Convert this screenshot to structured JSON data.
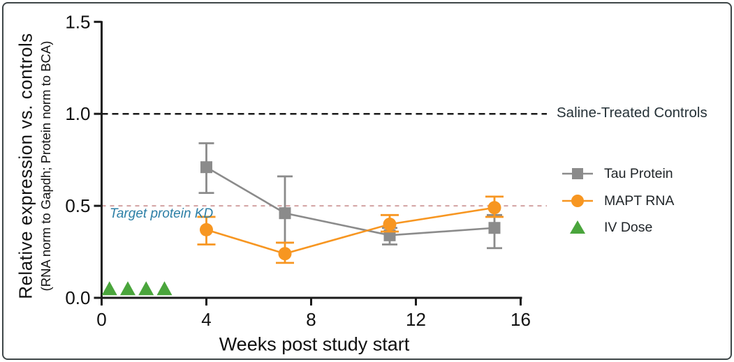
{
  "figure": {
    "background": "#ffffff",
    "border_color": "#3e4648"
  },
  "chart_data": {
    "type": "line",
    "title": "",
    "xlabel": "Weeks post study start",
    "ylabel": "Relative expression vs. controls",
    "ylabel_sub": "(RNA norm to Gapdh; Protein norm to BCA)",
    "xlim": [
      0,
      16
    ],
    "ylim": [
      0,
      1.5
    ],
    "x_ticks": [
      0,
      4,
      8,
      12,
      16
    ],
    "x_tick_labels": [
      "0",
      "4",
      "8",
      "12",
      "16"
    ],
    "y_ticks": [
      0,
      0.5,
      1.0,
      1.5
    ],
    "y_tick_labels": [
      "0.0",
      "0.5",
      "1.0",
      "1.5"
    ],
    "grid": false,
    "legend_position": "right-outside",
    "axis_color": "#1a1a1a",
    "series": [
      {
        "name": "Tau Protein",
        "marker": "square",
        "color": "#8b8b8b",
        "x": [
          4,
          7,
          11,
          15
        ],
        "y": [
          0.71,
          0.46,
          0.34,
          0.38
        ],
        "err_low": [
          0.14,
          0.16,
          0.05,
          0.11
        ],
        "err_high": [
          0.13,
          0.2,
          0.04,
          0.07
        ]
      },
      {
        "name": "MAPT RNA",
        "marker": "circle",
        "color": "#f79621",
        "x": [
          4,
          7,
          11,
          15
        ],
        "y": [
          0.37,
          0.24,
          0.4,
          0.49
        ],
        "err_low": [
          0.08,
          0.05,
          0.04,
          0.05
        ],
        "err_high": [
          0.07,
          0.06,
          0.05,
          0.06
        ]
      },
      {
        "name": "IV Dose",
        "marker": "triangle",
        "color": "#4aa53c",
        "x": [
          0.3,
          1.0,
          1.7,
          2.4
        ],
        "y": [
          0.05,
          0.05,
          0.05,
          0.05
        ]
      }
    ],
    "reference_lines": [
      {
        "y": 1.0,
        "style": "dashed",
        "color": "#1a1a1a",
        "label": "Saline-Treated Controls",
        "label_color": "#263238"
      },
      {
        "y": 0.5,
        "style": "dashed",
        "color": "#d2a1a1",
        "label": "Target protein KD",
        "label_color": "#2c7fa6"
      }
    ]
  }
}
